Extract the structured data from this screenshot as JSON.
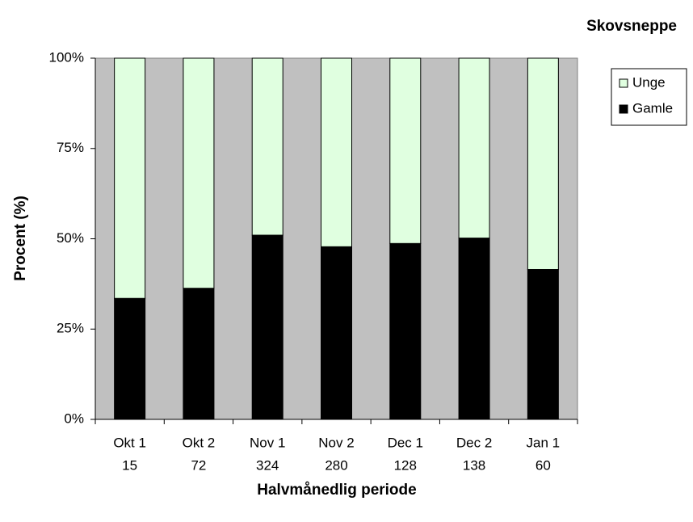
{
  "chart_data": {
    "type": "stacked_bar_100",
    "title": "Skovsneppe",
    "x_label": "Halvmånedlig periode",
    "y_label": "Procent (%)",
    "categories": [
      "Okt 1",
      "Okt 2",
      "Nov 1",
      "Nov 2",
      "Dec 1",
      "Dec 2",
      "Jan 1"
    ],
    "sample_sizes": [
      15,
      72,
      324,
      280,
      128,
      138,
      60
    ],
    "series": [
      {
        "name": "Gamle",
        "color": "#000000",
        "values": [
          33.5,
          36.3,
          51,
          47.8,
          48.7,
          50.2,
          41.5
        ]
      },
      {
        "name": "Unge",
        "color": "#e0ffe0",
        "values": [
          66.5,
          63.7,
          49,
          52.2,
          51.3,
          49.8,
          58.5
        ]
      }
    ],
    "ylim": [
      0,
      100
    ],
    "yticks": [
      {
        "value": 0,
        "label": "0%"
      },
      {
        "value": 25,
        "label": "25%"
      },
      {
        "value": 50,
        "label": "50%"
      },
      {
        "value": 75,
        "label": "75%"
      },
      {
        "value": 100,
        "label": "100%"
      }
    ],
    "plot_background": "#c0c0c0",
    "legend": "right"
  }
}
